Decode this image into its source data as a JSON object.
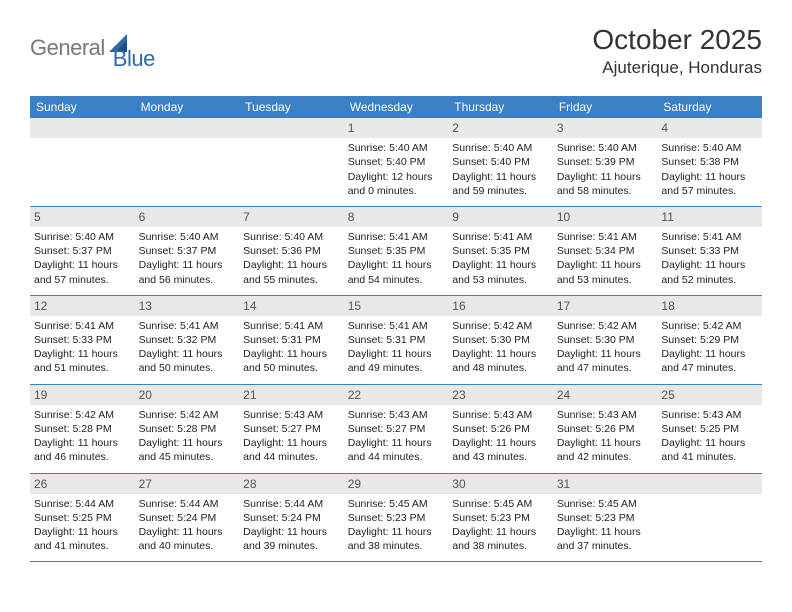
{
  "brand": {
    "part1": "General",
    "part2": "Blue"
  },
  "title": "October 2025",
  "location": "Ajuterique, Honduras",
  "colors": {
    "header_bg": "#3b7fc4",
    "header_text": "#ffffff",
    "daynum_bg": "#e8e8e8",
    "text": "#222222",
    "brand_gray": "#777777",
    "brand_blue": "#2f6aa8"
  },
  "weekdays": [
    "Sunday",
    "Monday",
    "Tuesday",
    "Wednesday",
    "Thursday",
    "Friday",
    "Saturday"
  ],
  "weeks": [
    [
      {
        "day": "",
        "lines": []
      },
      {
        "day": "",
        "lines": []
      },
      {
        "day": "",
        "lines": []
      },
      {
        "day": "1",
        "lines": [
          "Sunrise: 5:40 AM",
          "Sunset: 5:40 PM",
          "Daylight: 12 hours and 0 minutes."
        ]
      },
      {
        "day": "2",
        "lines": [
          "Sunrise: 5:40 AM",
          "Sunset: 5:40 PM",
          "Daylight: 11 hours and 59 minutes."
        ]
      },
      {
        "day": "3",
        "lines": [
          "Sunrise: 5:40 AM",
          "Sunset: 5:39 PM",
          "Daylight: 11 hours and 58 minutes."
        ]
      },
      {
        "day": "4",
        "lines": [
          "Sunrise: 5:40 AM",
          "Sunset: 5:38 PM",
          "Daylight: 11 hours and 57 minutes."
        ]
      }
    ],
    [
      {
        "day": "5",
        "lines": [
          "Sunrise: 5:40 AM",
          "Sunset: 5:37 PM",
          "Daylight: 11 hours and 57 minutes."
        ]
      },
      {
        "day": "6",
        "lines": [
          "Sunrise: 5:40 AM",
          "Sunset: 5:37 PM",
          "Daylight: 11 hours and 56 minutes."
        ]
      },
      {
        "day": "7",
        "lines": [
          "Sunrise: 5:40 AM",
          "Sunset: 5:36 PM",
          "Daylight: 11 hours and 55 minutes."
        ]
      },
      {
        "day": "8",
        "lines": [
          "Sunrise: 5:41 AM",
          "Sunset: 5:35 PM",
          "Daylight: 11 hours and 54 minutes."
        ]
      },
      {
        "day": "9",
        "lines": [
          "Sunrise: 5:41 AM",
          "Sunset: 5:35 PM",
          "Daylight: 11 hours and 53 minutes."
        ]
      },
      {
        "day": "10",
        "lines": [
          "Sunrise: 5:41 AM",
          "Sunset: 5:34 PM",
          "Daylight: 11 hours and 53 minutes."
        ]
      },
      {
        "day": "11",
        "lines": [
          "Sunrise: 5:41 AM",
          "Sunset: 5:33 PM",
          "Daylight: 11 hours and 52 minutes."
        ]
      }
    ],
    [
      {
        "day": "12",
        "lines": [
          "Sunrise: 5:41 AM",
          "Sunset: 5:33 PM",
          "Daylight: 11 hours and 51 minutes."
        ]
      },
      {
        "day": "13",
        "lines": [
          "Sunrise: 5:41 AM",
          "Sunset: 5:32 PM",
          "Daylight: 11 hours and 50 minutes."
        ]
      },
      {
        "day": "14",
        "lines": [
          "Sunrise: 5:41 AM",
          "Sunset: 5:31 PM",
          "Daylight: 11 hours and 50 minutes."
        ]
      },
      {
        "day": "15",
        "lines": [
          "Sunrise: 5:41 AM",
          "Sunset: 5:31 PM",
          "Daylight: 11 hours and 49 minutes."
        ]
      },
      {
        "day": "16",
        "lines": [
          "Sunrise: 5:42 AM",
          "Sunset: 5:30 PM",
          "Daylight: 11 hours and 48 minutes."
        ]
      },
      {
        "day": "17",
        "lines": [
          "Sunrise: 5:42 AM",
          "Sunset: 5:30 PM",
          "Daylight: 11 hours and 47 minutes."
        ]
      },
      {
        "day": "18",
        "lines": [
          "Sunrise: 5:42 AM",
          "Sunset: 5:29 PM",
          "Daylight: 11 hours and 47 minutes."
        ]
      }
    ],
    [
      {
        "day": "19",
        "lines": [
          "Sunrise: 5:42 AM",
          "Sunset: 5:28 PM",
          "Daylight: 11 hours and 46 minutes."
        ]
      },
      {
        "day": "20",
        "lines": [
          "Sunrise: 5:42 AM",
          "Sunset: 5:28 PM",
          "Daylight: 11 hours and 45 minutes."
        ]
      },
      {
        "day": "21",
        "lines": [
          "Sunrise: 5:43 AM",
          "Sunset: 5:27 PM",
          "Daylight: 11 hours and 44 minutes."
        ]
      },
      {
        "day": "22",
        "lines": [
          "Sunrise: 5:43 AM",
          "Sunset: 5:27 PM",
          "Daylight: 11 hours and 44 minutes."
        ]
      },
      {
        "day": "23",
        "lines": [
          "Sunrise: 5:43 AM",
          "Sunset: 5:26 PM",
          "Daylight: 11 hours and 43 minutes."
        ]
      },
      {
        "day": "24",
        "lines": [
          "Sunrise: 5:43 AM",
          "Sunset: 5:26 PM",
          "Daylight: 11 hours and 42 minutes."
        ]
      },
      {
        "day": "25",
        "lines": [
          "Sunrise: 5:43 AM",
          "Sunset: 5:25 PM",
          "Daylight: 11 hours and 41 minutes."
        ]
      }
    ],
    [
      {
        "day": "26",
        "lines": [
          "Sunrise: 5:44 AM",
          "Sunset: 5:25 PM",
          "Daylight: 11 hours and 41 minutes."
        ]
      },
      {
        "day": "27",
        "lines": [
          "Sunrise: 5:44 AM",
          "Sunset: 5:24 PM",
          "Daylight: 11 hours and 40 minutes."
        ]
      },
      {
        "day": "28",
        "lines": [
          "Sunrise: 5:44 AM",
          "Sunset: 5:24 PM",
          "Daylight: 11 hours and 39 minutes."
        ]
      },
      {
        "day": "29",
        "lines": [
          "Sunrise: 5:45 AM",
          "Sunset: 5:23 PM",
          "Daylight: 11 hours and 38 minutes."
        ]
      },
      {
        "day": "30",
        "lines": [
          "Sunrise: 5:45 AM",
          "Sunset: 5:23 PM",
          "Daylight: 11 hours and 38 minutes."
        ]
      },
      {
        "day": "31",
        "lines": [
          "Sunrise: 5:45 AM",
          "Sunset: 5:23 PM",
          "Daylight: 11 hours and 37 minutes."
        ]
      },
      {
        "day": "",
        "lines": []
      }
    ]
  ]
}
